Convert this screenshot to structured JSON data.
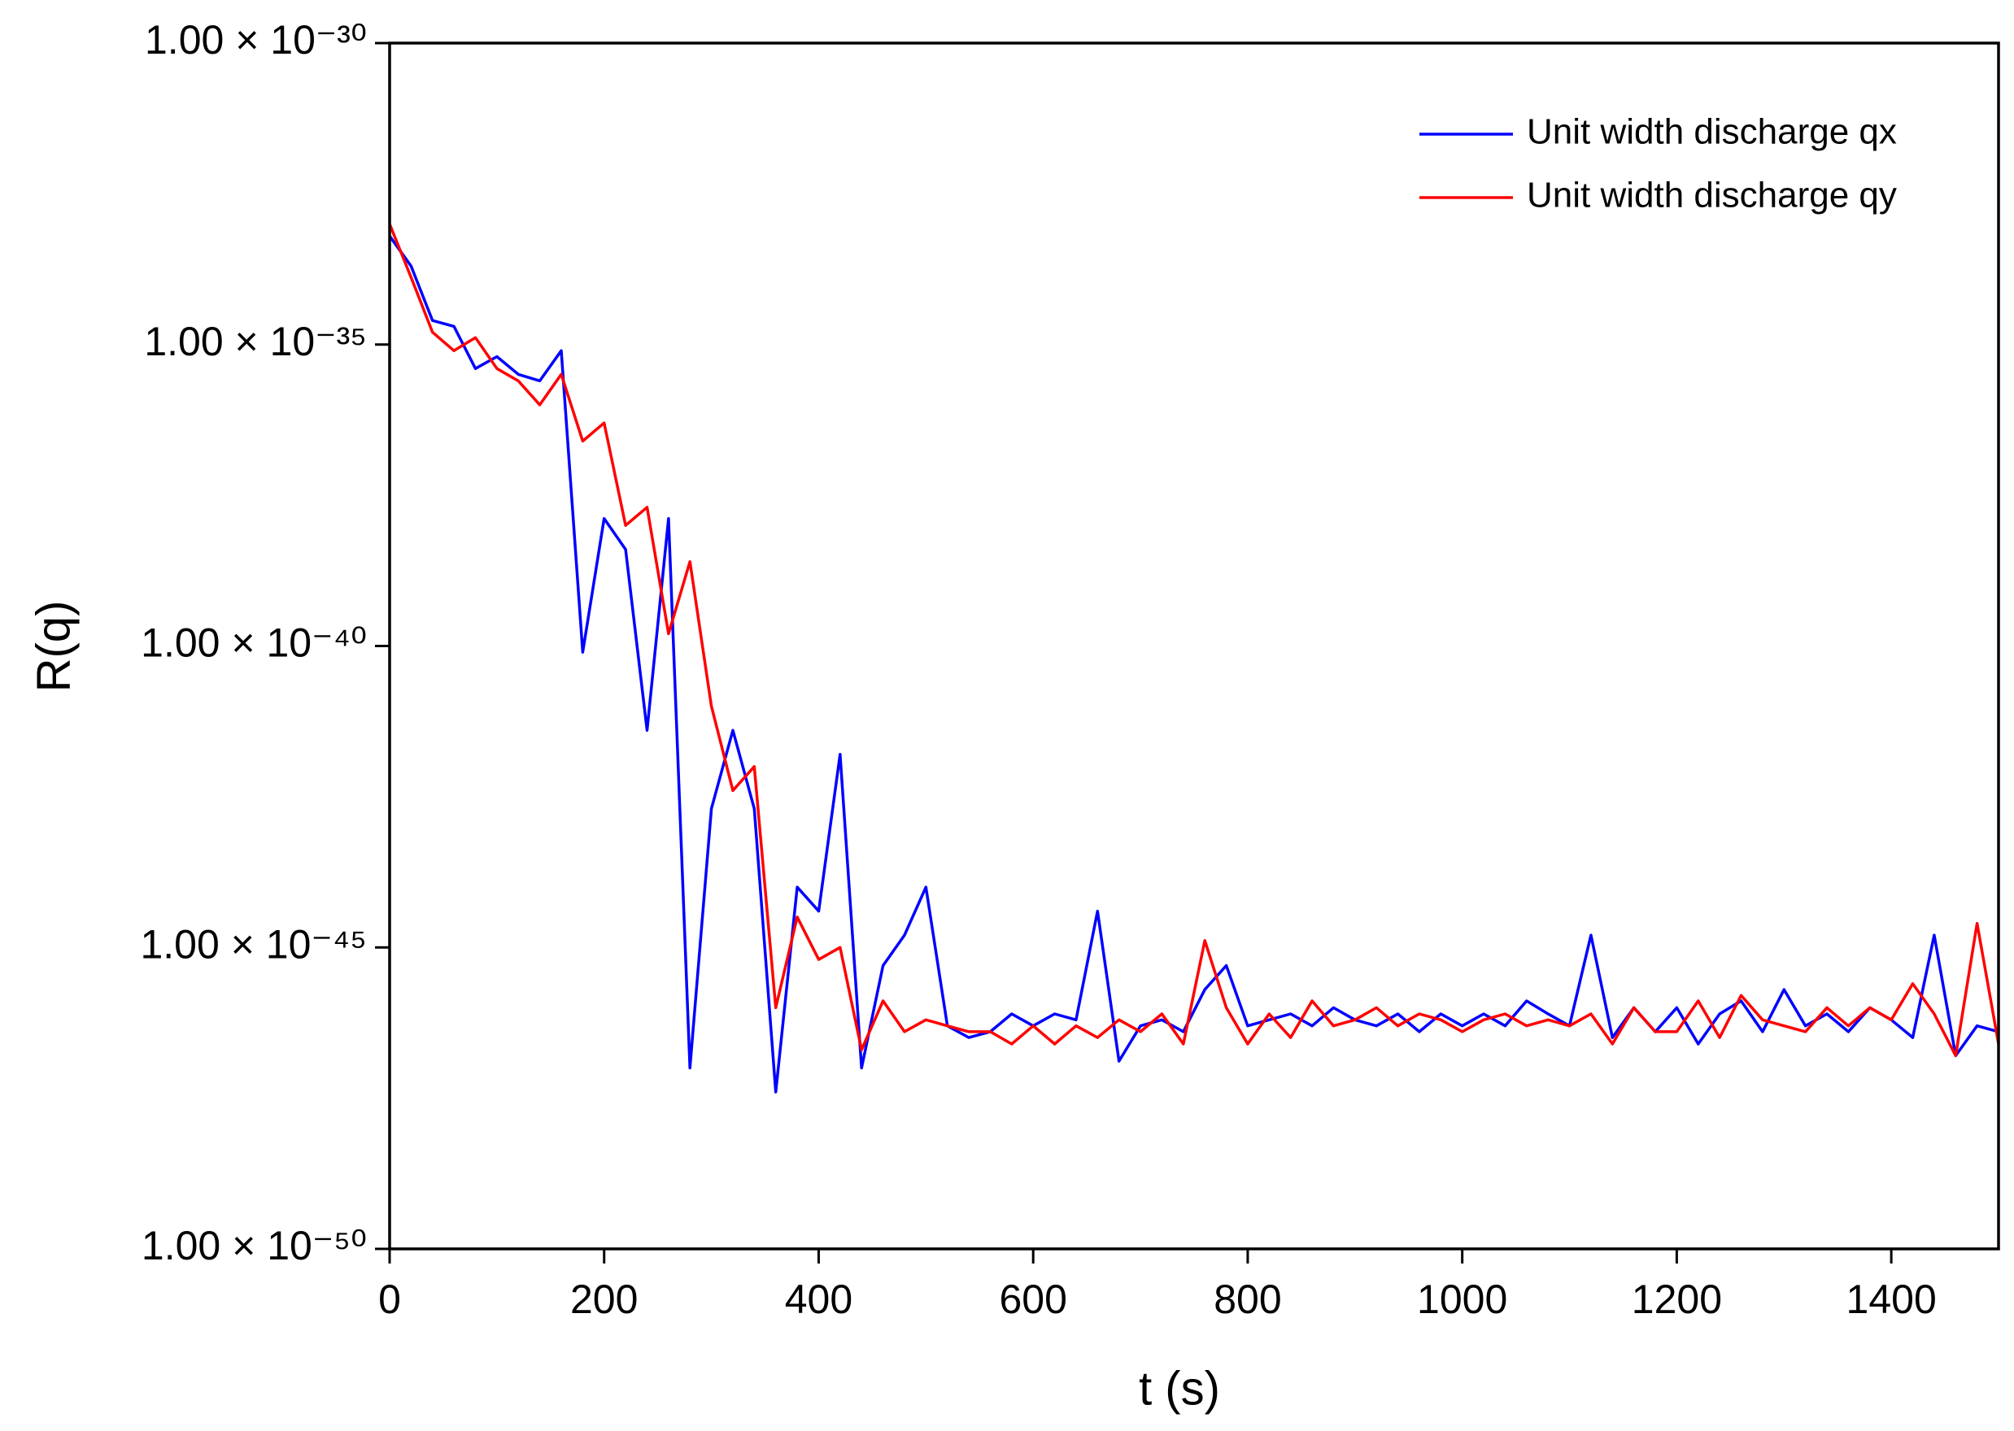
{
  "chart_data": {
    "type": "line",
    "x_label": "t (s)",
    "y_label": "R(q)",
    "xlim": [
      0,
      1500
    ],
    "xticks": [
      0,
      200,
      400,
      600,
      800,
      1000,
      1200,
      1400
    ],
    "ylim": [
      1e-50,
      1e-30
    ],
    "yscale": "log",
    "yticks": [
      {
        "value": 1e-50,
        "label": "1.00 × 10⁻⁵⁰"
      },
      {
        "value": 1e-45,
        "label": "1.00 × 10⁻⁴⁵"
      },
      {
        "value": 1e-40,
        "label": "1.00 × 10⁻⁴⁰"
      },
      {
        "value": 1e-35,
        "label": "1.00 × 10⁻³⁵"
      },
      {
        "value": 1e-30,
        "label": "1.00 × 10⁻³⁰"
      }
    ],
    "grid": false,
    "legend": "upper right",
    "x": [
      0,
      20,
      40,
      60,
      80,
      100,
      120,
      140,
      160,
      180,
      200,
      220,
      240,
      260,
      280,
      300,
      320,
      340,
      360,
      380,
      400,
      420,
      440,
      460,
      480,
      500,
      520,
      540,
      560,
      580,
      600,
      620,
      640,
      660,
      680,
      700,
      720,
      740,
      760,
      780,
      800,
      820,
      840,
      860,
      880,
      900,
      920,
      940,
      960,
      980,
      1000,
      1020,
      1040,
      1060,
      1080,
      1100,
      1120,
      1140,
      1160,
      1180,
      1200,
      1220,
      1240,
      1260,
      1280,
      1300,
      1320,
      1340,
      1360,
      1380,
      1400,
      1420,
      1440,
      1460,
      1480,
      1500
    ],
    "series": [
      {
        "name": "Unit width discharge qx",
        "color": "#0000ff",
        "values": [
          6.3e-34,
          2e-34,
          2.5e-35,
          2e-35,
          4e-36,
          6.3e-36,
          3.2e-36,
          2.5e-36,
          7.9e-36,
          7.9e-41,
          1.3e-38,
          4e-39,
          4e-42,
          1.3e-38,
          1e-47,
          2e-43,
          4e-42,
          2e-43,
          4e-48,
          1e-44,
          4e-45,
          1.6e-42,
          1e-47,
          5e-46,
          1.6e-45,
          1e-44,
          5e-47,
          3.2e-47,
          4e-47,
          7.9e-47,
          5e-47,
          7.9e-47,
          6.3e-47,
          4e-45,
          1.3e-47,
          5e-47,
          6.3e-47,
          4e-47,
          2e-46,
          5e-46,
          5e-47,
          6.3e-47,
          7.9e-47,
          5e-47,
          1e-46,
          6.3e-47,
          5e-47,
          7.9e-47,
          4e-47,
          7.9e-47,
          5e-47,
          7.9e-47,
          5e-47,
          1.3e-46,
          7.9e-47,
          5e-47,
          1.6e-45,
          3.2e-47,
          1e-46,
          4e-47,
          1e-46,
          2.5e-47,
          7.9e-47,
          1.3e-46,
          4e-47,
          2e-46,
          5e-47,
          7.9e-47,
          4e-47,
          1e-46,
          6.3e-47,
          3.2e-47,
          1.6e-45,
          1.6e-47,
          5e-47,
          4e-47
        ]
      },
      {
        "name": "Unit width discharge qy",
        "color": "#ff0000",
        "values": [
          1e-33,
          1.3e-34,
          1.6e-35,
          7.9e-36,
          1.3e-35,
          4e-36,
          2.5e-36,
          1e-36,
          3.2e-36,
          2.5e-37,
          5e-37,
          1e-38,
          2e-38,
          1.6e-40,
          2.5e-39,
          1e-41,
          4e-43,
          1e-42,
          1e-46,
          3.2e-45,
          6.3e-46,
          1e-45,
          2e-47,
          1.3e-46,
          4e-47,
          6.3e-47,
          5e-47,
          4e-47,
          4e-47,
          2.5e-47,
          5e-47,
          2.5e-47,
          5e-47,
          3.2e-47,
          6.3e-47,
          4e-47,
          7.9e-47,
          2.5e-47,
          1.3e-45,
          1e-46,
          2.5e-47,
          7.9e-47,
          3.2e-47,
          1.3e-46,
          5e-47,
          6.3e-47,
          1e-46,
          5e-47,
          7.9e-47,
          6.3e-47,
          4e-47,
          6.3e-47,
          7.9e-47,
          5e-47,
          6.3e-47,
          5e-47,
          7.9e-47,
          2.5e-47,
          1e-46,
          4e-47,
          4e-47,
          1.3e-46,
          3.2e-47,
          1.6e-46,
          6.3e-47,
          5e-47,
          4e-47,
          1e-46,
          5e-47,
          1e-46,
          6.3e-47,
          2.5e-46,
          7.9e-47,
          1.6e-47,
          2.5e-45,
          2.5e-47
        ]
      }
    ]
  }
}
